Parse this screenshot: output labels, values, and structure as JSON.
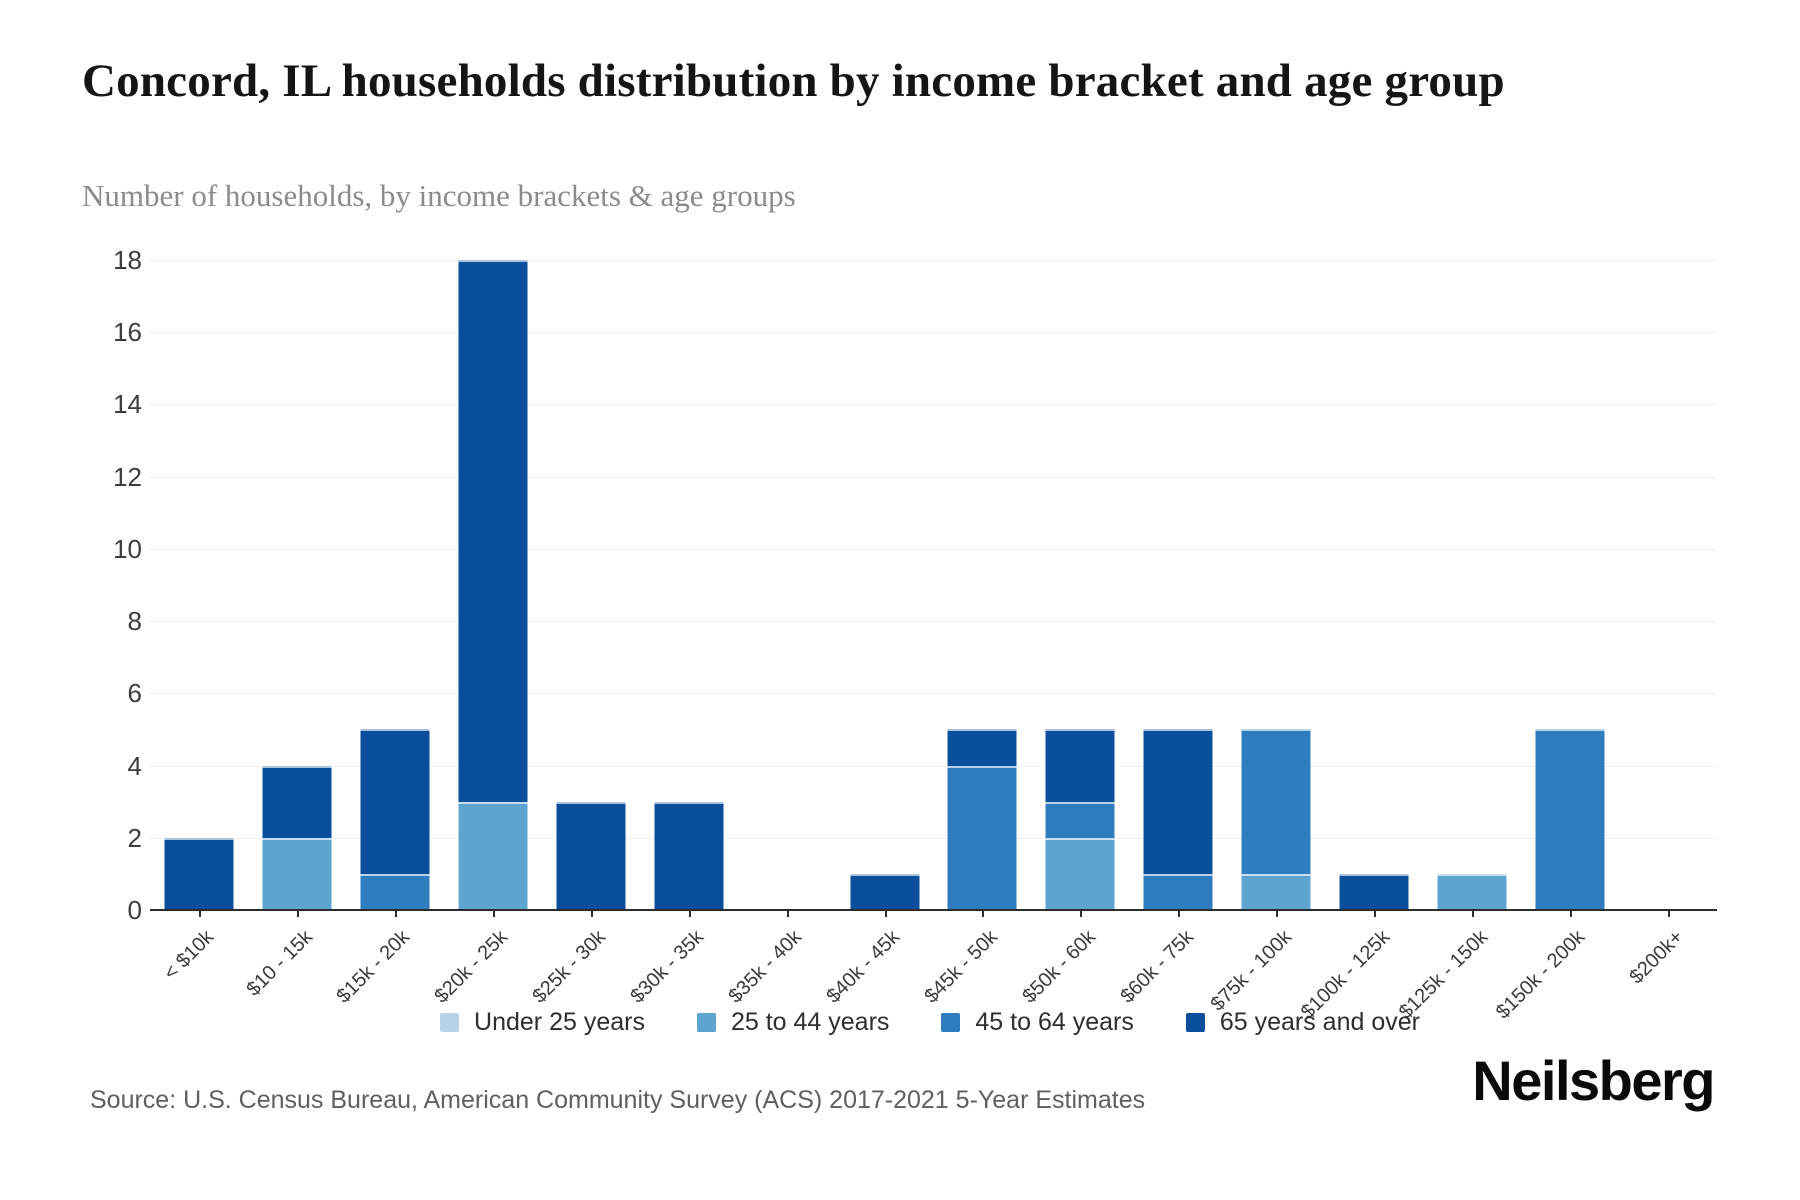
{
  "header": {
    "title": "Concord, IL households distribution by income bracket and age group",
    "subtitle": "Number of households, by income brackets & age groups"
  },
  "chart_data": {
    "type": "bar",
    "stacked": true,
    "title": "Concord, IL households distribution by income bracket and age group",
    "xlabel": "",
    "ylabel": "Number of households",
    "ylim": [
      0,
      18
    ],
    "yticks": [
      0,
      2,
      4,
      6,
      8,
      10,
      12,
      14,
      16,
      18
    ],
    "grid": "horizontal",
    "legend_position": "bottom",
    "categories": [
      "< $10k",
      "$10 - 15k",
      "$15k - 20k",
      "$20k - 25k",
      "$25k - 30k",
      "$30k - 35k",
      "$35k - 40k",
      "$40k - 45k",
      "$45k - 50k",
      "$50k - 60k",
      "$60k - 75k",
      "$75k - 100k",
      "$100k - 125k",
      "$125k - 150k",
      "$150k - 200k",
      "$200k+"
    ],
    "series": [
      {
        "name": "Under 25 years",
        "color": "#b8d3e8",
        "values": [
          0,
          0,
          0,
          0,
          0,
          0,
          0,
          0,
          0,
          0,
          0,
          0,
          0,
          0,
          0,
          0
        ]
      },
      {
        "name": "25 to 44 years",
        "color": "#5da4d1",
        "values": [
          0,
          2,
          0,
          3,
          0,
          0,
          0,
          0,
          0,
          2,
          0,
          1,
          0,
          1,
          0,
          0
        ]
      },
      {
        "name": "45 to 64 years",
        "color": "#2f7cbe",
        "values": [
          0,
          0,
          1,
          0,
          0,
          0,
          0,
          0,
          4,
          1,
          1,
          4,
          0,
          0,
          5,
          0
        ]
      },
      {
        "name": "65 years and over",
        "color": "#0b4f9c",
        "values": [
          2,
          2,
          4,
          15,
          3,
          3,
          0,
          1,
          1,
          2,
          4,
          0,
          1,
          0,
          0,
          0
        ]
      }
    ]
  },
  "footer": {
    "source": "Source: U.S. Census Bureau, American Community Survey (ACS) 2017-2021 5-Year Estimates",
    "brand": "Neilsberg"
  }
}
